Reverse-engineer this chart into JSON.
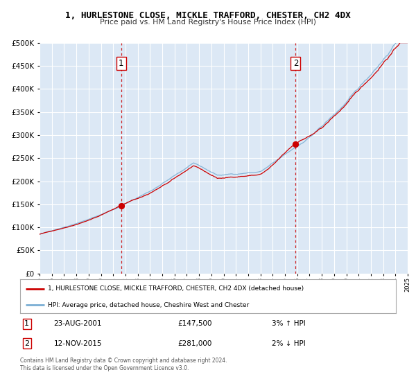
{
  "title": "1, HURLESTONE CLOSE, MICKLE TRAFFORD, CHESTER, CH2 4DX",
  "subtitle": "Price paid vs. HM Land Registry's House Price Index (HPI)",
  "legend_label_red": "1, HURLESTONE CLOSE, MICKLE TRAFFORD, CHESTER, CH2 4DX (detached house)",
  "legend_label_blue": "HPI: Average price, detached house, Cheshire West and Chester",
  "transaction1_date": "23-AUG-2001",
  "transaction1_price": "£147,500",
  "transaction1_pct": "3% ↑ HPI",
  "transaction2_date": "12-NOV-2015",
  "transaction2_price": "£281,000",
  "transaction2_pct": "2% ↓ HPI",
  "footnote": "Contains HM Land Registry data © Crown copyright and database right 2024.\nThis data is licensed under the Open Government Licence v3.0.",
  "vline1_x": 2001.65,
  "vline2_x": 2015.87,
  "dot1_x": 2001.65,
  "dot1_y": 147500,
  "dot2_x": 2015.87,
  "dot2_y": 281000,
  "xmin": 1995,
  "xmax": 2025,
  "ymin": 0,
  "ymax": 500000,
  "yticks": [
    0,
    50000,
    100000,
    150000,
    200000,
    250000,
    300000,
    350000,
    400000,
    450000,
    500000
  ],
  "background_color": "#dce8f5",
  "grid_color": "#ffffff",
  "red_color": "#cc0000",
  "blue_color": "#7bafd4"
}
